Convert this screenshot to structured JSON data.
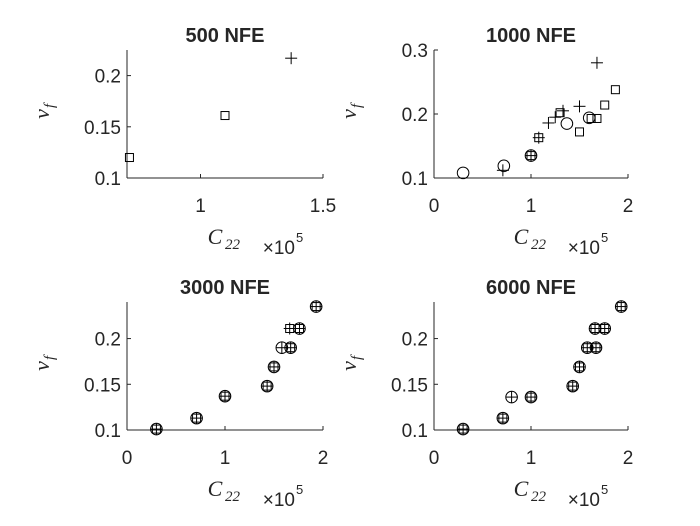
{
  "colors": {
    "axis": "#262626",
    "marker": "#000000",
    "background": "#ffffff"
  },
  "chart_data": [
    {
      "type": "scatter",
      "title": "500 NFE",
      "xlabel": "C",
      "xlabel_sub": "22",
      "ylabel": "v",
      "ylabel_sub": "f",
      "x_multiplier": {
        "base": "×10",
        "exp": "5"
      },
      "xlim": [
        0.7,
        1.5
      ],
      "ylim": [
        0.1,
        0.225
      ],
      "xticks": [
        1,
        1.5
      ],
      "xtick_labels": [
        "1",
        "1.5"
      ],
      "yticks": [
        0.1,
        0.15,
        0.2
      ],
      "ytick_labels": [
        "0.1",
        "0.15",
        "0.2"
      ],
      "points": [
        {
          "x": 1.37,
          "y": 0.217,
          "marker": "plus"
        },
        {
          "x": 1.1,
          "y": 0.161,
          "marker": "square"
        },
        {
          "x": 0.71,
          "y": 0.12,
          "marker": "square"
        }
      ]
    },
    {
      "type": "scatter",
      "title": "1000 NFE",
      "xlabel": "C",
      "xlabel_sub": "22",
      "ylabel": "v",
      "ylabel_sub": "f",
      "x_multiplier": {
        "base": "×10",
        "exp": "5"
      },
      "xlim": [
        0,
        2
      ],
      "ylim": [
        0.1,
        0.3
      ],
      "xticks": [
        0,
        1,
        2
      ],
      "xtick_labels": [
        "0",
        "1",
        "2"
      ],
      "yticks": [
        0.1,
        0.2,
        0.3
      ],
      "ytick_labels": [
        "0.1",
        "0.2",
        "0.3"
      ],
      "points": [
        {
          "x": 0.3,
          "y": 0.108,
          "marker": "circle"
        },
        {
          "x": 0.71,
          "y": 0.112,
          "marker": "plus"
        },
        {
          "x": 0.72,
          "y": 0.119,
          "marker": "circle"
        },
        {
          "x": 1.0,
          "y": 0.135,
          "marker": "plus"
        },
        {
          "x": 1.0,
          "y": 0.135,
          "marker": "circle"
        },
        {
          "x": 1.0,
          "y": 0.135,
          "marker": "square"
        },
        {
          "x": 1.08,
          "y": 0.163,
          "marker": "plus"
        },
        {
          "x": 1.08,
          "y": 0.163,
          "marker": "square"
        },
        {
          "x": 1.18,
          "y": 0.186,
          "marker": "plus"
        },
        {
          "x": 1.25,
          "y": 0.195,
          "marker": "plus"
        },
        {
          "x": 1.3,
          "y": 0.202,
          "marker": "square"
        },
        {
          "x": 1.33,
          "y": 0.205,
          "marker": "plus"
        },
        {
          "x": 1.37,
          "y": 0.185,
          "marker": "circle"
        },
        {
          "x": 1.5,
          "y": 0.212,
          "marker": "plus"
        },
        {
          "x": 1.5,
          "y": 0.172,
          "marker": "square"
        },
        {
          "x": 1.6,
          "y": 0.194,
          "marker": "circle"
        },
        {
          "x": 1.62,
          "y": 0.193,
          "marker": "square"
        },
        {
          "x": 1.68,
          "y": 0.28,
          "marker": "plus"
        },
        {
          "x": 1.68,
          "y": 0.193,
          "marker": "square"
        },
        {
          "x": 1.76,
          "y": 0.214,
          "marker": "square"
        },
        {
          "x": 1.87,
          "y": 0.238,
          "marker": "square"
        }
      ]
    },
    {
      "type": "scatter",
      "title": "3000 NFE",
      "xlabel": "C",
      "xlabel_sub": "22",
      "ylabel": "v",
      "ylabel_sub": "f",
      "x_multiplier": {
        "base": "×10",
        "exp": "5"
      },
      "xlim": [
        0,
        2
      ],
      "ylim": [
        0.1,
        0.24
      ],
      "xticks": [
        0,
        1,
        2
      ],
      "xtick_labels": [
        "0",
        "1",
        "2"
      ],
      "yticks": [
        0.1,
        0.15,
        0.2
      ],
      "ytick_labels": [
        "0.1",
        "0.15",
        "0.2"
      ],
      "points": [
        {
          "x": 0.3,
          "y": 0.101,
          "marker": "plus"
        },
        {
          "x": 0.3,
          "y": 0.101,
          "marker": "circle"
        },
        {
          "x": 0.3,
          "y": 0.101,
          "marker": "square"
        },
        {
          "x": 0.71,
          "y": 0.113,
          "marker": "plus"
        },
        {
          "x": 0.71,
          "y": 0.113,
          "marker": "circle"
        },
        {
          "x": 0.71,
          "y": 0.113,
          "marker": "square"
        },
        {
          "x": 1.0,
          "y": 0.137,
          "marker": "plus"
        },
        {
          "x": 1.0,
          "y": 0.137,
          "marker": "circle"
        },
        {
          "x": 1.0,
          "y": 0.137,
          "marker": "square"
        },
        {
          "x": 1.43,
          "y": 0.148,
          "marker": "plus"
        },
        {
          "x": 1.43,
          "y": 0.148,
          "marker": "circle"
        },
        {
          "x": 1.43,
          "y": 0.148,
          "marker": "square"
        },
        {
          "x": 1.5,
          "y": 0.169,
          "marker": "plus"
        },
        {
          "x": 1.5,
          "y": 0.169,
          "marker": "circle"
        },
        {
          "x": 1.5,
          "y": 0.169,
          "marker": "square"
        },
        {
          "x": 1.58,
          "y": 0.19,
          "marker": "plus"
        },
        {
          "x": 1.58,
          "y": 0.19,
          "marker": "circle"
        },
        {
          "x": 1.67,
          "y": 0.19,
          "marker": "plus"
        },
        {
          "x": 1.67,
          "y": 0.19,
          "marker": "circle"
        },
        {
          "x": 1.67,
          "y": 0.19,
          "marker": "square"
        },
        {
          "x": 1.66,
          "y": 0.211,
          "marker": "plus"
        },
        {
          "x": 1.66,
          "y": 0.211,
          "marker": "square"
        },
        {
          "x": 1.76,
          "y": 0.211,
          "marker": "plus"
        },
        {
          "x": 1.76,
          "y": 0.211,
          "marker": "circle"
        },
        {
          "x": 1.76,
          "y": 0.211,
          "marker": "square"
        },
        {
          "x": 1.93,
          "y": 0.235,
          "marker": "plus"
        },
        {
          "x": 1.93,
          "y": 0.235,
          "marker": "circle"
        },
        {
          "x": 1.93,
          "y": 0.235,
          "marker": "square"
        }
      ]
    },
    {
      "type": "scatter",
      "title": "6000 NFE",
      "xlabel": "C",
      "xlabel_sub": "22",
      "ylabel": "v",
      "ylabel_sub": "f",
      "x_multiplier": {
        "base": "×10",
        "exp": "5"
      },
      "xlim": [
        0,
        2
      ],
      "ylim": [
        0.1,
        0.24
      ],
      "xticks": [
        0,
        1,
        2
      ],
      "xtick_labels": [
        "0",
        "1",
        "2"
      ],
      "yticks": [
        0.1,
        0.15,
        0.2
      ],
      "ytick_labels": [
        "0.1",
        "0.15",
        "0.2"
      ],
      "points": [
        {
          "x": 0.3,
          "y": 0.101,
          "marker": "plus"
        },
        {
          "x": 0.3,
          "y": 0.101,
          "marker": "circle"
        },
        {
          "x": 0.3,
          "y": 0.101,
          "marker": "square"
        },
        {
          "x": 0.71,
          "y": 0.113,
          "marker": "plus"
        },
        {
          "x": 0.71,
          "y": 0.113,
          "marker": "circle"
        },
        {
          "x": 0.71,
          "y": 0.113,
          "marker": "square"
        },
        {
          "x": 0.8,
          "y": 0.136,
          "marker": "plus"
        },
        {
          "x": 0.8,
          "y": 0.136,
          "marker": "circle"
        },
        {
          "x": 1.0,
          "y": 0.136,
          "marker": "plus"
        },
        {
          "x": 1.0,
          "y": 0.136,
          "marker": "circle"
        },
        {
          "x": 1.0,
          "y": 0.136,
          "marker": "square"
        },
        {
          "x": 1.43,
          "y": 0.148,
          "marker": "plus"
        },
        {
          "x": 1.43,
          "y": 0.148,
          "marker": "circle"
        },
        {
          "x": 1.43,
          "y": 0.148,
          "marker": "square"
        },
        {
          "x": 1.5,
          "y": 0.169,
          "marker": "plus"
        },
        {
          "x": 1.5,
          "y": 0.169,
          "marker": "circle"
        },
        {
          "x": 1.5,
          "y": 0.169,
          "marker": "square"
        },
        {
          "x": 1.58,
          "y": 0.19,
          "marker": "plus"
        },
        {
          "x": 1.58,
          "y": 0.19,
          "marker": "circle"
        },
        {
          "x": 1.58,
          "y": 0.19,
          "marker": "square"
        },
        {
          "x": 1.67,
          "y": 0.19,
          "marker": "plus"
        },
        {
          "x": 1.67,
          "y": 0.19,
          "marker": "circle"
        },
        {
          "x": 1.67,
          "y": 0.19,
          "marker": "square"
        },
        {
          "x": 1.66,
          "y": 0.211,
          "marker": "plus"
        },
        {
          "x": 1.66,
          "y": 0.211,
          "marker": "circle"
        },
        {
          "x": 1.66,
          "y": 0.211,
          "marker": "square"
        },
        {
          "x": 1.76,
          "y": 0.211,
          "marker": "plus"
        },
        {
          "x": 1.76,
          "y": 0.211,
          "marker": "circle"
        },
        {
          "x": 1.76,
          "y": 0.211,
          "marker": "square"
        },
        {
          "x": 1.93,
          "y": 0.235,
          "marker": "plus"
        },
        {
          "x": 1.93,
          "y": 0.235,
          "marker": "circle"
        },
        {
          "x": 1.93,
          "y": 0.235,
          "marker": "square"
        }
      ]
    }
  ]
}
